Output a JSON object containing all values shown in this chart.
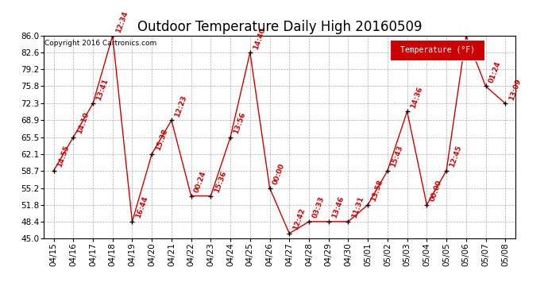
{
  "title": "Outdoor Temperature Daily High 20160509",
  "copyright": "Copyright 2016 Cartronics.com",
  "legend_label": "Temperature (°F)",
  "dates": [
    "04/15",
    "04/16",
    "04/17",
    "04/18",
    "04/19",
    "04/20",
    "04/21",
    "04/22",
    "04/23",
    "04/24",
    "04/25",
    "04/26",
    "04/27",
    "04/28",
    "04/29",
    "04/30",
    "05/01",
    "05/02",
    "05/03",
    "05/04",
    "05/05",
    "05/06",
    "05/07",
    "05/08"
  ],
  "temps": [
    58.7,
    65.5,
    72.3,
    86.0,
    48.4,
    62.1,
    68.9,
    53.6,
    53.6,
    65.5,
    82.6,
    55.2,
    46.0,
    48.4,
    48.4,
    48.4,
    51.8,
    58.7,
    70.7,
    51.8,
    58.7,
    86.0,
    75.8,
    72.3
  ],
  "time_labels": [
    "14:55",
    "14:10",
    "13:41",
    "12:34",
    "16:44",
    "15:38",
    "12:23",
    "00:24",
    "15:36",
    "13:56",
    "14:40",
    "00:00",
    "12:42",
    "03:33",
    "13:46",
    "11:31",
    "13:58",
    "15:43",
    "14:36",
    "00:00",
    "12:45",
    "",
    "01:24",
    "13:09"
  ],
  "line_color": "#cc0000",
  "marker_color": "#000000",
  "label_color": "#cc0000",
  "bg_color": "#ffffff",
  "grid_color": "#999999",
  "ylim": [
    45.0,
    86.0
  ],
  "yticks": [
    45.0,
    48.4,
    51.8,
    55.2,
    58.7,
    62.1,
    65.5,
    68.9,
    72.3,
    75.8,
    79.2,
    82.6,
    86.0
  ],
  "legend_bg": "#cc0000",
  "legend_text_color": "#ffffff",
  "title_fontsize": 12,
  "label_fontsize": 6.5,
  "tick_fontsize": 7.5,
  "copyright_fontsize": 6.5,
  "label_rotation": 70
}
